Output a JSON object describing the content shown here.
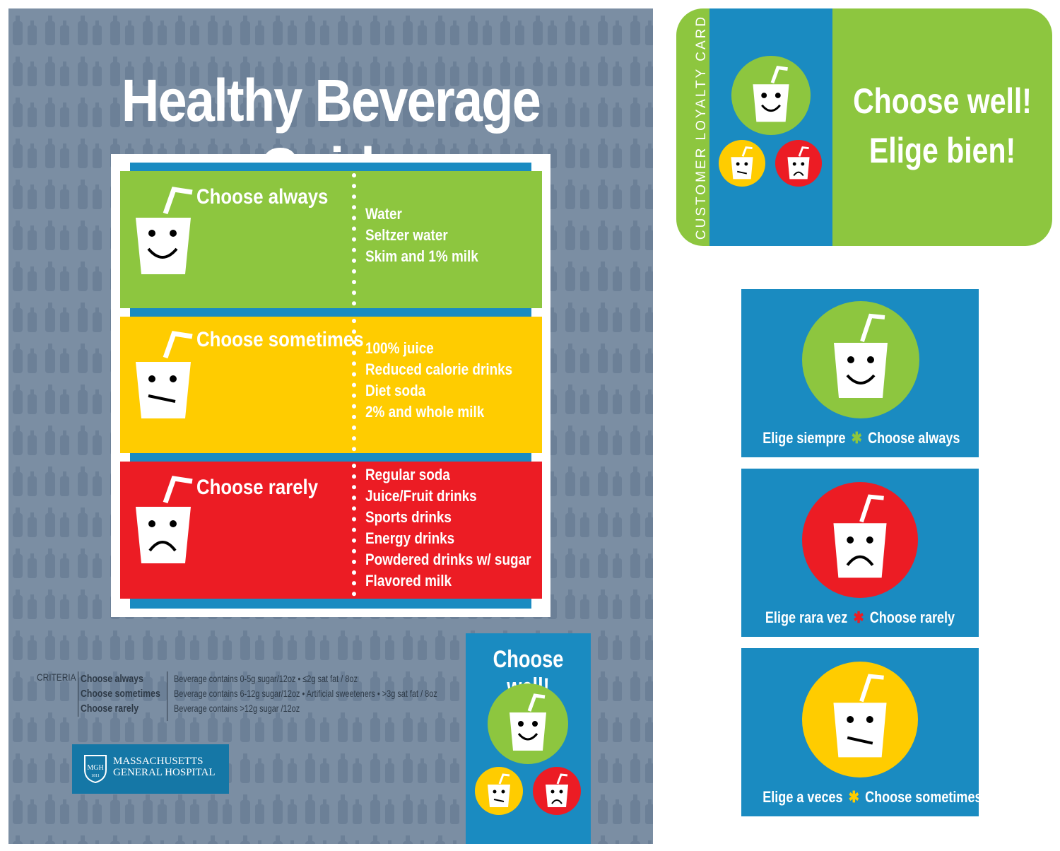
{
  "poster": {
    "title": "Healthy Beverage Guide",
    "bands": [
      {
        "label": "Choose always",
        "face": "happy",
        "color": "#8dc63f",
        "items": [
          "Water",
          "Seltzer water",
          "Skim and 1% milk"
        ]
      },
      {
        "label": "Choose sometimes",
        "face": "neutral",
        "color": "#ffcc00",
        "items": [
          "100% juice",
          "Reduced calorie drinks",
          "Diet soda",
          "2% and whole milk"
        ]
      },
      {
        "label": "Choose rarely",
        "face": "sad",
        "color": "#ec1c24",
        "items": [
          "Regular soda",
          "Juice/Fruit drinks",
          "Sports drinks",
          "Energy drinks",
          "Powdered drinks w/ sugar",
          "Flavored milk"
        ]
      }
    ],
    "criteria": {
      "heading": "CRITERIA",
      "rows": [
        {
          "category": "Choose always",
          "description": "Beverage contains 0-5g sugar/12oz • ≤2g sat fat / 8oz"
        },
        {
          "category": "Choose sometimes",
          "description": "Beverage contains 6-12g sugar/12oz • Artificial sweeteners • >3g sat fat / 8oz"
        },
        {
          "category": "Choose rarely",
          "description": "Beverage contains >12g sugar /12oz"
        }
      ]
    },
    "logo": {
      "emblem": "MGH",
      "year": "1811",
      "line1": "MASSACHUSETTS",
      "line2": "GENERAL HOSPITAL"
    },
    "mini_card": {
      "title": "Choose well!"
    }
  },
  "loyalty_card": {
    "vertical_label": "CUSTOMER LOYALTY CARD",
    "line1": "Choose well!",
    "line2": "Elige bien!"
  },
  "signs": [
    {
      "spanish": "Elige siempre",
      "english": "Choose always",
      "face": "happy",
      "circle_color": "#8dc63f",
      "star_color": "#8dc63f"
    },
    {
      "spanish": "Elige rara vez",
      "english": "Choose rarely",
      "face": "sad",
      "circle_color": "#ec1c24",
      "star_color": "#ec1c24"
    },
    {
      "spanish": "Elige a veces",
      "english": "Choose sometimes",
      "face": "neutral",
      "circle_color": "#ffcc00",
      "star_color": "#ffcc00"
    }
  ],
  "colors": {
    "blue": "#1a8bc1",
    "green": "#8dc63f",
    "yellow": "#ffcc00",
    "red": "#ec1c24",
    "poster_bg": "#7b8ea3"
  }
}
